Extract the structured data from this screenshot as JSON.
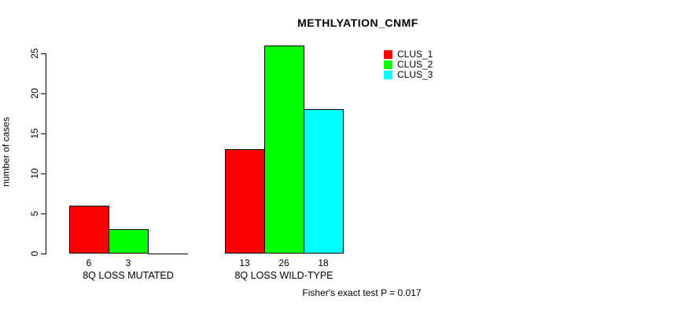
{
  "chart_data": {
    "type": "bar",
    "title": "METHLYATION_CNMF",
    "xlabel": "",
    "ylabel": "number of cases",
    "categories": [
      "8Q LOSS MUTATED",
      "8Q LOSS WILD-TYPE"
    ],
    "series": [
      {
        "name": "CLUS_1",
        "color": "#ff0000",
        "values": [
          6,
          13
        ]
      },
      {
        "name": "CLUS_2",
        "color": "#00ff00",
        "values": [
          3,
          26
        ]
      },
      {
        "name": "CLUS_3",
        "color": "#00ffff",
        "values": [
          0,
          18
        ]
      }
    ],
    "bar_value_labels": [
      [
        "6",
        "3",
        ""
      ],
      [
        "13",
        "26",
        "18"
      ]
    ],
    "yticks": [
      0,
      5,
      10,
      15,
      20,
      25
    ],
    "ylim": [
      0,
      25
    ],
    "grid": false,
    "legend_position": "top-right",
    "legend_entries": [
      "CLUS_1",
      "CLUS_2",
      "CLUS_3"
    ],
    "annotation": "Fisher's exact test P = 0.017"
  }
}
